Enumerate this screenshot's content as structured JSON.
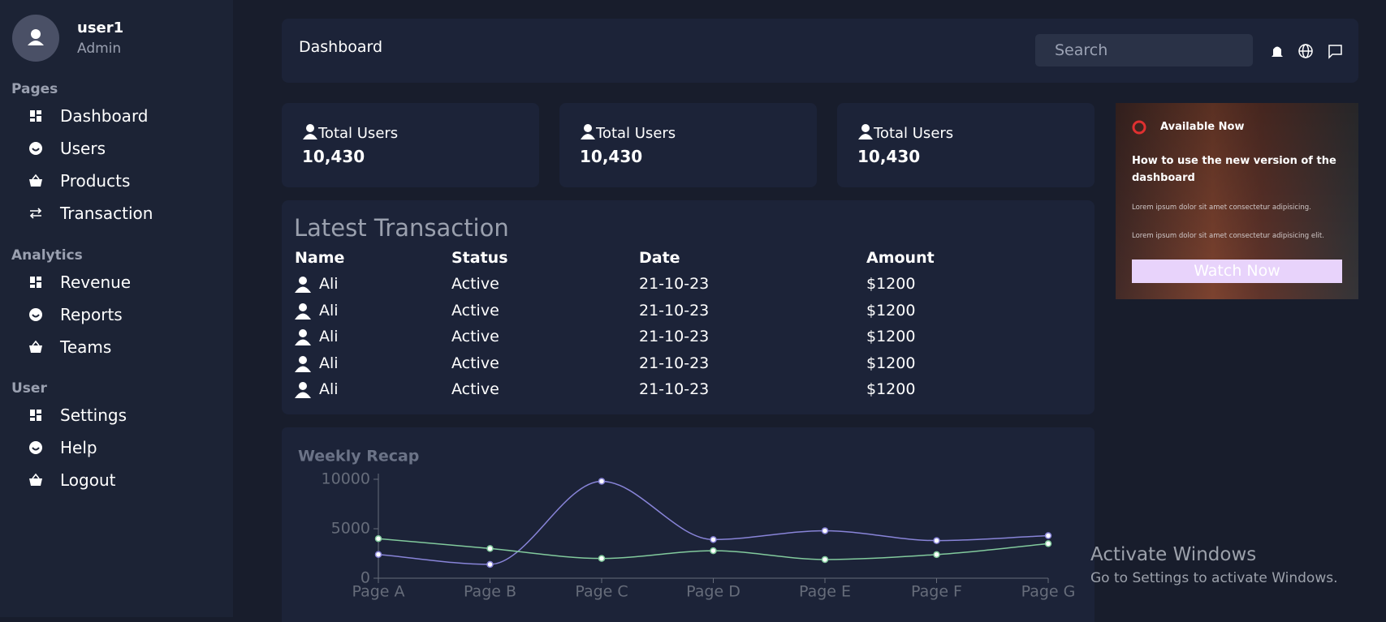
{
  "sidebar": {
    "user": {
      "name": "user1",
      "role": "Admin"
    },
    "sections": [
      {
        "title": "Pages",
        "items": [
          "Dashboard",
          "Users",
          "Products",
          "Transaction"
        ]
      },
      {
        "title": "Analytics",
        "items": [
          "Revenue",
          "Reports",
          "Teams"
        ]
      },
      {
        "title": "User",
        "items": [
          "Settings",
          "Help",
          "Logout"
        ]
      }
    ]
  },
  "header": {
    "title": "Dashboard",
    "search": "Search"
  },
  "stats": [
    {
      "label": "Total Users",
      "value": "10,430"
    },
    {
      "label": "Total Users",
      "value": "10,430"
    },
    {
      "label": "Total Users",
      "value": "10,430"
    }
  ],
  "transactions": {
    "title": "Latest Transaction",
    "columns": [
      "Name",
      "Status",
      "Date",
      "Amount"
    ],
    "rows": [
      [
        "Ali",
        "Active",
        "21-10-23",
        "$1200"
      ],
      [
        "Ali",
        "Active",
        "21-10-23",
        "$1200"
      ],
      [
        "Ali",
        "Active",
        "21-10-23",
        "$1200"
      ],
      [
        "Ali",
        "Active",
        "21-10-23",
        "$1200"
      ],
      [
        "Ali",
        "Active",
        "21-10-23",
        "$1200"
      ]
    ]
  },
  "promo": {
    "badge": "Available Now",
    "heading": "How to use the new version of the dashboard",
    "lines": [
      "Lorem ipsum dolor sit amet consectetur adipisicing.",
      "Lorem ipsum dolor sit amet consectetur adipisicing elit."
    ],
    "button": "Watch Now"
  },
  "chart_data": {
    "type": "line",
    "title": "Weekly Recap",
    "categories": [
      "Page A",
      "Page B",
      "Page C",
      "Page D",
      "Page E",
      "Page F",
      "Page G"
    ],
    "ylim": [
      0,
      10000
    ],
    "yticks": [
      0,
      5000,
      10000
    ],
    "series": [
      {
        "color": "#8884d8",
        "values": [
          2400,
          1398,
          9800,
          3908,
          4800,
          3800,
          4300
        ]
      },
      {
        "color": "#82ca9d",
        "values": [
          4000,
          3000,
          2000,
          2780,
          1890,
          2390,
          3490
        ]
      }
    ]
  },
  "watermark": {
    "title": "Activate Windows",
    "subtitle": "Go to Settings to activate Windows."
  }
}
